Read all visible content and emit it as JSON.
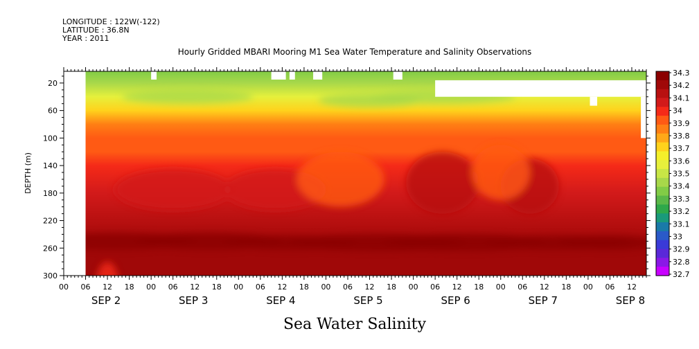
{
  "header": {
    "lines": [
      "LONGITUDE : 122W(-122)",
      "LATITUDE : 36.8N",
      "YEAR : 2011"
    ],
    "title": "Hourly Gridded MBARI Mooring M1 Sea Water Temperature and Salinity Observations",
    "bottom_title": "Sea Water Salinity"
  },
  "chart_data": {
    "type": "heatmap",
    "title": "Hourly Gridded MBARI Mooring M1 Sea Water Temperature and Salinity Observations",
    "subtitle": "Sea Water Salinity",
    "ylabel": "DEPTH (m)",
    "yaxis_inverted": true,
    "ylim": [
      300,
      3
    ],
    "y_ticks": [
      20,
      60,
      100,
      140,
      180,
      220,
      260,
      300
    ],
    "x_range_hours": [
      0,
      160
    ],
    "x_hour_ticks": [
      "00",
      "06",
      "12",
      "18",
      "00",
      "06",
      "12",
      "18",
      "00",
      "06",
      "12",
      "18",
      "00",
      "06",
      "12",
      "18",
      "00",
      "06",
      "12",
      "18",
      "00",
      "06",
      "12",
      "18",
      "00",
      "06",
      "12"
    ],
    "x_date_labels": [
      "SEP  2",
      "SEP  3",
      "SEP  4",
      "SEP  5",
      "SEP  6",
      "SEP  7",
      "SEP  8"
    ],
    "data_start": "SEP 2 06:00",
    "colorbar": {
      "levels": [
        34.3,
        34.2,
        34.1,
        34,
        33.9,
        33.8,
        33.7,
        33.6,
        33.5,
        33.4,
        33.3,
        33.2,
        33.1,
        33,
        32.9,
        32.8,
        32.7
      ],
      "colors": [
        "#8b0000",
        "#a00808",
        "#b81010",
        "#d21a1a",
        "#f52a18",
        "#ff5a14",
        "#ff7f14",
        "#ffa818",
        "#ffd21c",
        "#f4f02a",
        "#e6f03c",
        "#c8e646",
        "#a8d84a",
        "#82cc46",
        "#5ab848",
        "#2ea84a",
        "#1a9a7a",
        "#1a7aa8",
        "#2a5ac8",
        "#3a3ad8",
        "#5a28d8",
        "#8a18e6",
        "#c800ff"
      ]
    },
    "depth_profile": [
      {
        "depth": 3,
        "salinity": 33.35
      },
      {
        "depth": 20,
        "salinity": 33.45
      },
      {
        "depth": 40,
        "salinity": 33.6
      },
      {
        "depth": 60,
        "salinity": 33.7
      },
      {
        "depth": 80,
        "salinity": 33.85
      },
      {
        "depth": 100,
        "salinity": 33.92
      },
      {
        "depth": 120,
        "salinity": 33.97
      },
      {
        "depth": 140,
        "salinity": 34.02
      },
      {
        "depth": 180,
        "salinity": 34.05
      },
      {
        "depth": 220,
        "salinity": 34.15
      },
      {
        "depth": 260,
        "salinity": 34.25
      },
      {
        "depth": 300,
        "salinity": 34.2
      }
    ]
  }
}
